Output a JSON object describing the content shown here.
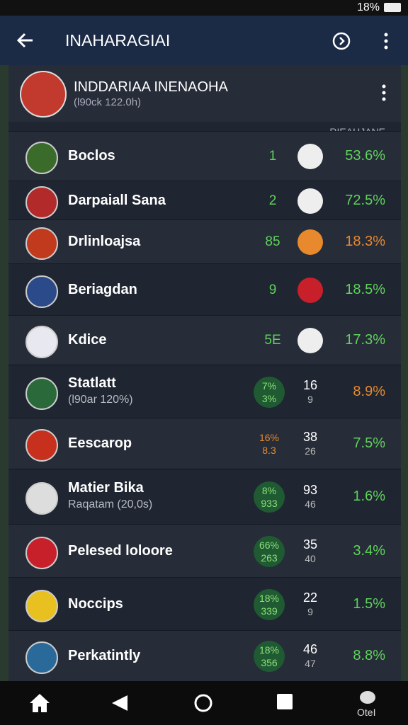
{
  "status_bar": {
    "battery": "18%"
  },
  "app_bar": {
    "title": "INAHARAGIAI"
  },
  "header": {
    "title": "INDDARIAA INENAOHA",
    "subtitle": "(l90ck 122.0h)"
  },
  "column_header": "RIEAHJANE",
  "rows": [
    {
      "name": "Boclos",
      "rank": "1",
      "pct": "53.6%",
      "pct_color": "#5fd35a"
    },
    {
      "name": "Darpaiall Sana",
      "rank": "2",
      "pct": "72.5%",
      "pct_color": "#5fd35a"
    },
    {
      "name": "Drlinloajsa",
      "rank": "85",
      "pct": "18.3%",
      "pct_color": "#e8892e"
    },
    {
      "name": "Beriagdan",
      "rank": "9",
      "pct": "18.5%",
      "pct_color": "#5fd35a"
    },
    {
      "name": "Kdice",
      "rank": "5E",
      "pct": "17.3%",
      "pct_color": "#5fd35a"
    },
    {
      "name": "Statlatt",
      "sub": "(l90ar 120%)",
      "badge": [
        "7%",
        "3%"
      ],
      "nums": [
        "16",
        "9"
      ],
      "pct": "8.9%",
      "pct_color": "#e8892e"
    },
    {
      "name": "Eescarop",
      "badge": [
        "16%",
        "8.3"
      ],
      "nums": [
        "38",
        "26"
      ],
      "pct": "7.5%",
      "pct_color": "#5fd35a"
    },
    {
      "name": "Matier Bika",
      "sub": "Raqatam (20,0s)",
      "badge": [
        "8%",
        "933"
      ],
      "nums": [
        "93",
        "46"
      ],
      "pct": "1.6%",
      "pct_color": "#5fd35a"
    },
    {
      "name": "Pelesed loloore",
      "badge": [
        "66%",
        "263"
      ],
      "nums": [
        "35",
        "40"
      ],
      "pct": "3.4%",
      "pct_color": "#5fd35a"
    },
    {
      "name": "Noccips",
      "badge": [
        "18%",
        "339"
      ],
      "nums": [
        "22",
        "9"
      ],
      "pct": "1.5%",
      "pct_color": "#5fd35a"
    },
    {
      "name": "Perkatintly",
      "badge": [
        "18%",
        "356"
      ],
      "nums": [
        "46",
        "47"
      ],
      "pct": "8.8%",
      "pct_color": "#5fd35a"
    }
  ],
  "bottom_nav": {
    "profile_label": "OteI"
  }
}
